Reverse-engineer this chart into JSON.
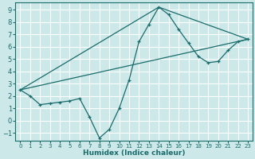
{
  "xlabel": "Humidex (Indice chaleur)",
  "background_color": "#cce8e8",
  "grid_color": "#ffffff",
  "line_color": "#1a6b6b",
  "xlim": [
    -0.5,
    23.5
  ],
  "ylim": [
    -1.6,
    9.6
  ],
  "xticks": [
    0,
    1,
    2,
    3,
    4,
    5,
    6,
    7,
    8,
    9,
    10,
    11,
    12,
    13,
    14,
    15,
    16,
    17,
    18,
    19,
    20,
    21,
    22,
    23
  ],
  "yticks": [
    -1,
    0,
    1,
    2,
    3,
    4,
    5,
    6,
    7,
    8,
    9
  ],
  "curve1_x": [
    0,
    1,
    2,
    3,
    4,
    5,
    6,
    7,
    8,
    9,
    10,
    11,
    12,
    13,
    14,
    15,
    16,
    17,
    18,
    19,
    20,
    21,
    22,
    23
  ],
  "curve1_y": [
    2.5,
    2.0,
    1.3,
    1.4,
    1.5,
    1.6,
    1.8,
    0.3,
    -1.4,
    -0.7,
    1.0,
    3.3,
    6.4,
    7.8,
    9.2,
    8.6,
    7.4,
    6.3,
    5.2,
    4.7,
    4.8,
    5.7,
    6.4,
    6.6
  ],
  "line1_x": [
    0,
    23
  ],
  "line1_y": [
    2.5,
    6.6
  ],
  "line2_x": [
    0,
    14,
    23
  ],
  "line2_y": [
    2.5,
    9.2,
    6.6
  ]
}
